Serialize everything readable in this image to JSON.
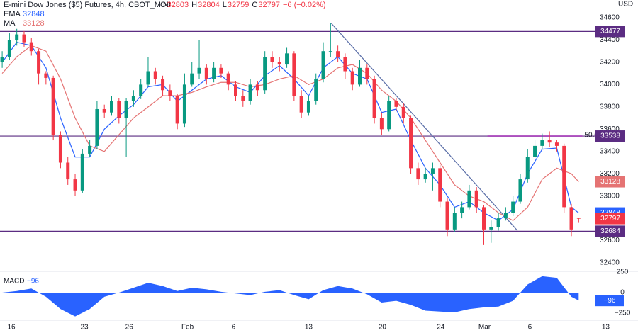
{
  "chart_data": {
    "type": "candlestick",
    "title": "E-mini Dow Jones ($5) Futures, 4h, CBOT_MINI",
    "ohlc_labels": [
      "O",
      "H",
      "L",
      "C"
    ],
    "change_text": "−6 (−0.02%)",
    "currency": "USD",
    "up_color": "#089981",
    "down_color": "#f23645",
    "xlim": [
      -0.3,
      81.3
    ],
    "ylim": [
      32324,
      34759
    ],
    "yticks": [
      32400,
      32600,
      33000,
      33200,
      33400,
      33600,
      33800,
      34000,
      34200,
      34400,
      34600
    ],
    "xticks": [
      {
        "value": 1.26,
        "label": "16"
      },
      {
        "value": 11.26,
        "label": "23"
      },
      {
        "value": 17.4,
        "label": "26"
      },
      {
        "value": 25.4,
        "label": "Feb"
      },
      {
        "value": 31.7,
        "label": "6"
      },
      {
        "value": 42,
        "label": "13"
      },
      {
        "value": 52.1,
        "label": "20"
      },
      {
        "value": 60.1,
        "label": "24"
      },
      {
        "value": 66.1,
        "label": "Mar"
      },
      {
        "value": 72.3,
        "label": "6"
      },
      {
        "value": 82.7,
        "label": "13"
      }
    ],
    "candles": [
      [
        34200,
        34300,
        34150,
        34250
      ],
      [
        34250,
        34460,
        34220,
        34400
      ],
      [
        34400,
        34500,
        34350,
        34450
      ],
      [
        34450,
        34480,
        34340,
        34380
      ],
      [
        34380,
        34420,
        34260,
        34300
      ],
      [
        34300,
        34320,
        34000,
        34100
      ],
      [
        34100,
        34120,
        34000,
        34060
      ],
      [
        34060,
        34080,
        33500,
        33550
      ],
      [
        33550,
        33580,
        33250,
        33300
      ],
      [
        33300,
        33350,
        33100,
        33150
      ],
      [
        33150,
        33200,
        33000,
        33050
      ],
      [
        33050,
        33420,
        33030,
        33380
      ],
      [
        33380,
        33500,
        33350,
        33450
      ],
      [
        33450,
        33850,
        33420,
        33780
      ],
      [
        33780,
        33820,
        33700,
        33750
      ],
      [
        33750,
        33900,
        33720,
        33850
      ],
      [
        33850,
        33880,
        33650,
        33700
      ],
      [
        33700,
        33880,
        33350,
        33850
      ],
      [
        33850,
        33950,
        33800,
        33900
      ],
      [
        33900,
        34050,
        33870,
        34000
      ],
      [
        34000,
        34250,
        33980,
        34120
      ],
      [
        34120,
        34150,
        34000,
        34050
      ],
      [
        34050,
        34080,
        33900,
        33950
      ],
      [
        33950,
        34000,
        33850,
        33900
      ],
      [
        33900,
        33920,
        33600,
        33650
      ],
      [
        33650,
        34100,
        33620,
        34000
      ],
      [
        34000,
        34200,
        33980,
        34100
      ],
      [
        34100,
        34400,
        34050,
        34150
      ],
      [
        34150,
        34180,
        34000,
        34050
      ],
      [
        34050,
        34200,
        34020,
        34150
      ],
      [
        34150,
        34180,
        34060,
        34100
      ],
      [
        34100,
        34120,
        33950,
        34000
      ],
      [
        34000,
        34030,
        33850,
        33900
      ],
      [
        33900,
        33950,
        33800,
        33850
      ],
      [
        33850,
        34050,
        33820,
        34000
      ],
      [
        34000,
        34030,
        33900,
        33950
      ],
      [
        33950,
        34300,
        33920,
        34250
      ],
      [
        34250,
        34300,
        34150,
        34200
      ],
      [
        34200,
        34250,
        34120,
        34180
      ],
      [
        34180,
        34330,
        34150,
        34280
      ],
      [
        34280,
        34300,
        33850,
        33900
      ],
      [
        33900,
        33950,
        33700,
        33750
      ],
      [
        33750,
        33900,
        33720,
        33850
      ],
      [
        33850,
        34100,
        33820,
        34050
      ],
      [
        34050,
        34380,
        34020,
        34300
      ],
      [
        34300,
        34550,
        34250,
        34300
      ],
      [
        34300,
        34350,
        34200,
        34250
      ],
      [
        34250,
        34280,
        34050,
        34120
      ],
      [
        34120,
        34150,
        33950,
        34000
      ],
      [
        34000,
        34220,
        33980,
        34150
      ],
      [
        34150,
        34180,
        34000,
        34050
      ],
      [
        34050,
        34080,
        33650,
        33700
      ],
      [
        33700,
        33750,
        33550,
        33600
      ],
      [
        33600,
        33900,
        33580,
        33850
      ],
      [
        33850,
        33880,
        33760,
        33800
      ],
      [
        33800,
        33830,
        33650,
        33700
      ],
      [
        33700,
        33720,
        33200,
        33250
      ],
      [
        33250,
        33300,
        33100,
        33150
      ],
      [
        33150,
        33250,
        33120,
        33200
      ],
      [
        33200,
        33300,
        33050,
        33250
      ],
      [
        33250,
        33280,
        32900,
        32950
      ],
      [
        32950,
        32980,
        32640,
        32700
      ],
      [
        32700,
        32900,
        32680,
        32850
      ],
      [
        32850,
        32950,
        32800,
        32900
      ],
      [
        32900,
        33100,
        32880,
        33050
      ],
      [
        33050,
        33080,
        32850,
        32900
      ],
      [
        32900,
        32920,
        32560,
        32700
      ],
      [
        32700,
        32780,
        32580,
        32720
      ],
      [
        32720,
        32850,
        32690,
        32800
      ],
      [
        32800,
        32900,
        32780,
        32850
      ],
      [
        32850,
        33000,
        32820,
        32950
      ],
      [
        32950,
        33200,
        32930,
        33150
      ],
      [
        33150,
        33420,
        33120,
        33350
      ],
      [
        33350,
        33500,
        33320,
        33450
      ],
      [
        33450,
        33560,
        33420,
        33500
      ],
      [
        33500,
        33580,
        33440,
        33480
      ],
      [
        33480,
        33500,
        33400,
        33450
      ],
      [
        33450,
        33470,
        32850,
        32900
      ],
      [
        32900,
        32930,
        32640,
        32700
      ],
      [
        32803,
        32804,
        32759,
        32797
      ]
    ],
    "indicators": [
      {
        "name": "EMA",
        "color": "#2962ff",
        "x": [
          0,
          2,
          4,
          6,
          8,
          10,
          12,
          14,
          16,
          18,
          20,
          22,
          24,
          26,
          28,
          30,
          32,
          34,
          36,
          38,
          40,
          42,
          44,
          46,
          48,
          50,
          52,
          54,
          56,
          58,
          60,
          62,
          64,
          66,
          68,
          70,
          72,
          74,
          76,
          78,
          79
        ],
        "values": [
          34200,
          34380,
          34350,
          34150,
          33700,
          33350,
          33350,
          33600,
          33720,
          33820,
          33980,
          34000,
          33850,
          33950,
          34050,
          34080,
          33980,
          33930,
          34080,
          34170,
          34050,
          33900,
          34150,
          34250,
          34100,
          34050,
          33750,
          33780,
          33500,
          33250,
          33100,
          32900,
          32950,
          32850,
          32780,
          32880,
          33200,
          33420,
          33430,
          32900,
          32848
        ]
      },
      {
        "name": "MA",
        "color": "#e57373",
        "x": [
          0,
          2,
          4,
          6,
          8,
          10,
          12,
          14,
          16,
          18,
          20,
          22,
          24,
          26,
          28,
          30,
          32,
          34,
          36,
          38,
          40,
          42,
          44,
          46,
          48,
          50,
          52,
          54,
          56,
          58,
          60,
          62,
          64,
          66,
          68,
          70,
          72,
          74,
          76,
          78,
          79
        ],
        "values": [
          34100,
          34250,
          34350,
          34300,
          34050,
          33700,
          33450,
          33400,
          33550,
          33700,
          33800,
          33900,
          33900,
          33930,
          33980,
          34020,
          34020,
          33980,
          34000,
          34050,
          34080,
          34000,
          34050,
          34150,
          34180,
          34100,
          33950,
          33850,
          33700,
          33500,
          33300,
          33100,
          33000,
          32950,
          32850,
          32780,
          32900,
          33150,
          33250,
          33200,
          33128
        ]
      }
    ],
    "levels": {
      "color": "#5b2c82",
      "values": [
        34477,
        33538,
        32684
      ]
    },
    "fib": {
      "label": "50.00%",
      "value": 33538,
      "x": [
        66.5,
        79.5
      ],
      "color": "#9c27b0"
    },
    "trendline": {
      "color": "#5b6fa8",
      "from": [
        45.1,
        34550
      ],
      "to": [
        70.6,
        32690
      ]
    },
    "macd": {
      "name": "MACD",
      "color": "#2962ff",
      "ylim": [
        -336,
        259
      ],
      "yticks": [
        {
          "value": -250,
          "label": "−250"
        },
        0,
        250
      ],
      "x": [
        0,
        2,
        4,
        6,
        8,
        10,
        12,
        14,
        16,
        18,
        20,
        22,
        24,
        26,
        28,
        30,
        32,
        34,
        36,
        38,
        40,
        42,
        44,
        46,
        48,
        50,
        52,
        54,
        56,
        58,
        60,
        62,
        64,
        66,
        68,
        70,
        72,
        74,
        76,
        78,
        79
      ],
      "values": [
        0,
        20,
        50,
        -50,
        -200,
        -290,
        -200,
        -50,
        0,
        60,
        120,
        80,
        20,
        60,
        40,
        10,
        -10,
        -30,
        10,
        30,
        -30,
        -80,
        30,
        80,
        50,
        -20,
        -120,
        -100,
        -150,
        -220,
        -230,
        -240,
        -200,
        -180,
        -170,
        -100,
        100,
        200,
        180,
        -50,
        -96
      ],
      "value_labels": {
        "40": "−96"
      }
    }
  }
}
